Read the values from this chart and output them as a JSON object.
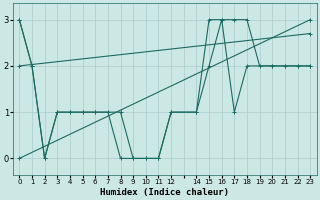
{
  "xlabel": "Humidex (Indice chaleur)",
  "bg_color": "#cce8e4",
  "grid_color": "#aacccc",
  "line_color": "#1a6b60",
  "xlim": [
    -0.5,
    23.5
  ],
  "ylim": [
    -0.35,
    3.35
  ],
  "xtick_vals": [
    0,
    1,
    2,
    3,
    4,
    5,
    6,
    7,
    8,
    9,
    10,
    11,
    12,
    13,
    14,
    15,
    16,
    17,
    18,
    19,
    20,
    21,
    22,
    23
  ],
  "xtick_labels": [
    "0",
    "1",
    "2",
    "3",
    "4",
    "5",
    "6",
    "7",
    "8",
    "9",
    "10",
    "11",
    "12",
    "",
    "14",
    "15",
    "16",
    "17",
    "18",
    "19",
    "20",
    "21",
    "22",
    "23"
  ],
  "yticks": [
    0,
    1,
    2,
    3
  ],
  "lines": [
    {
      "x": [
        0,
        1,
        2,
        3,
        4,
        5,
        6,
        7,
        8,
        9,
        10,
        11,
        12,
        14,
        15,
        16,
        17,
        18,
        19,
        20,
        21,
        22,
        23
      ],
      "y": [
        3,
        2,
        0,
        1,
        1,
        1,
        1,
        1,
        1,
        0,
        0,
        0,
        1,
        1,
        3,
        3,
        3,
        3,
        2,
        2,
        2,
        2,
        2
      ]
    },
    {
      "x": [
        0,
        1,
        2,
        3,
        4,
        5,
        6,
        7,
        8,
        9,
        10,
        11,
        12,
        14,
        15,
        16,
        17,
        18,
        20,
        21,
        22,
        23
      ],
      "y": [
        3,
        2,
        0,
        1,
        1,
        1,
        1,
        1,
        0,
        0,
        0,
        0,
        1,
        1,
        2,
        3,
        1,
        2,
        2,
        2,
        2,
        2
      ]
    },
    {
      "x": [
        0,
        23
      ],
      "y": [
        0,
        3
      ]
    },
    {
      "x": [
        0,
        23
      ],
      "y": [
        2,
        2.7
      ]
    }
  ]
}
